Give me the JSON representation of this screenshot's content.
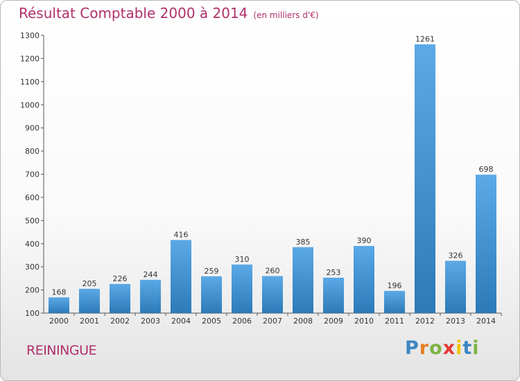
{
  "title": "Résultat Comptable 2000 à 2014",
  "subtitle": "(en milliers d'€)",
  "place": "REININGUE",
  "logo_text": "Proxiti",
  "colors": {
    "bar_top": "#5ba9e6",
    "bar_bottom": "#2c7ab8",
    "title": "#b0306a",
    "axis": "#555555"
  },
  "chart_data": {
    "type": "bar",
    "categories": [
      "2000",
      "2001",
      "2002",
      "2003",
      "2004",
      "2005",
      "2006",
      "2007",
      "2008",
      "2009",
      "2010",
      "2011",
      "2012",
      "2013",
      "2014"
    ],
    "values": [
      168,
      205,
      226,
      244,
      416,
      259,
      310,
      260,
      385,
      253,
      390,
      196,
      1261,
      326,
      698
    ],
    "ylim": [
      100,
      1300
    ],
    "yticks": [
      100,
      200,
      300,
      400,
      500,
      600,
      700,
      800,
      900,
      1000,
      1100,
      1200,
      1300
    ],
    "grid": false,
    "legend": "none"
  }
}
